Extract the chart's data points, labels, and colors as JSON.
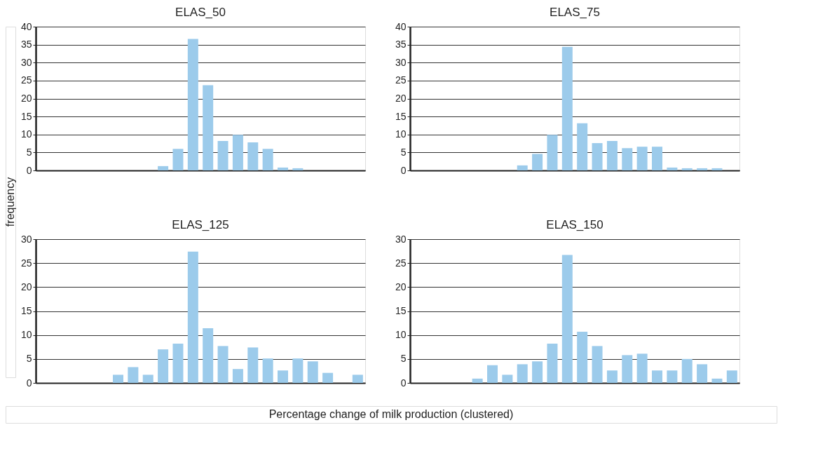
{
  "chart_data": [
    {
      "type": "bar",
      "title": "ELAS_50",
      "ylabel": "frequency",
      "categories": [
        null,
        null,
        null,
        null,
        null,
        null,
        null,
        null,
        null,
        null,
        null,
        null,
        null,
        null,
        null,
        null,
        null,
        null,
        null,
        null,
        null,
        null
      ],
      "values": [
        null,
        null,
        null,
        null,
        null,
        null,
        null,
        null,
        1.2,
        6,
        36.6,
        23.7,
        8.2,
        9.9,
        7.8,
        6,
        0.8,
        0.6,
        null,
        null,
        null,
        null
      ],
      "color": "#9ccbeb",
      "ylim": [
        0,
        40
      ],
      "yticks": [
        0,
        5,
        10,
        15,
        20,
        25,
        30,
        35,
        40
      ],
      "grid": "y"
    },
    {
      "type": "bar",
      "title": "ELAS_75",
      "categories": [
        null,
        null,
        null,
        null,
        null,
        null,
        null,
        null,
        null,
        null,
        null,
        null,
        null,
        null,
        null,
        null,
        null,
        null,
        null,
        null,
        null,
        null
      ],
      "values": [
        null,
        null,
        null,
        null,
        null,
        null,
        null,
        1.4,
        4.6,
        9.9,
        34.4,
        13.1,
        7.6,
        8.2,
        6.2,
        6.6,
        6.6,
        0.8,
        0.6,
        0.6,
        0.6,
        null
      ],
      "color": "#9ccbeb",
      "ylim": [
        0,
        40
      ],
      "yticks": [
        0,
        5,
        10,
        15,
        20,
        25,
        30,
        35,
        40
      ],
      "grid": "y"
    },
    {
      "type": "bar",
      "title": "ELAS_125",
      "xlabel": "Percentage change of milk production (clustered)",
      "categories": [
        null,
        null,
        null,
        null,
        null,
        null,
        null,
        null,
        null,
        null,
        null,
        null,
        null,
        null,
        null,
        null,
        null,
        null,
        null,
        null,
        null,
        null
      ],
      "values": [
        null,
        null,
        null,
        null,
        null,
        1.7,
        3.3,
        1.7,
        7.0,
        8.2,
        27.4,
        11.4,
        7.7,
        2.9,
        7.4,
        5.1,
        2.6,
        5.1,
        4.5,
        2.1,
        null,
        1.7
      ],
      "color": "#9ccbeb",
      "ylim": [
        0,
        30
      ],
      "yticks": [
        0,
        5,
        10,
        15,
        20,
        25,
        30
      ],
      "grid": "y"
    },
    {
      "type": "bar",
      "title": "ELAS_150",
      "categories": [
        null,
        null,
        null,
        null,
        null,
        null,
        null,
        null,
        null,
        null,
        null,
        null,
        null,
        null,
        null,
        null,
        null,
        null,
        null,
        null,
        null,
        null
      ],
      "values": [
        null,
        null,
        null,
        null,
        0.9,
        3.7,
        1.7,
        3.9,
        4.5,
        8.2,
        26.7,
        10.7,
        7.7,
        2.6,
        5.8,
        6.1,
        2.6,
        2.6,
        5.0,
        3.9,
        0.9,
        2.6
      ],
      "color": "#9ccbeb",
      "ylim": [
        0,
        30
      ],
      "yticks": [
        0,
        5,
        10,
        15,
        20,
        25,
        30
      ],
      "grid": "y"
    }
  ]
}
